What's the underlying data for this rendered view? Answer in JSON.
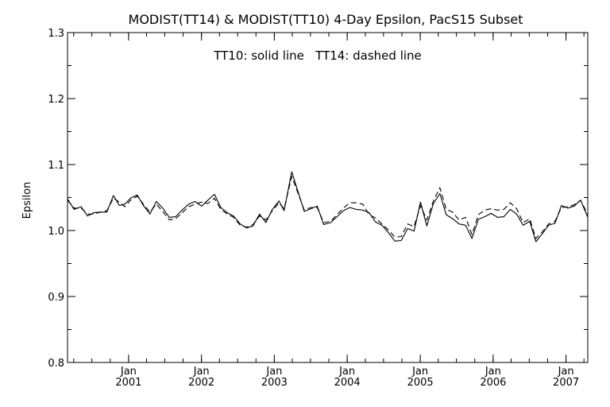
{
  "chart_data": {
    "type": "line",
    "title": "MODIST(TT14) & MODIST(TT10) 4-Day Epsilon, PacS15 Subset",
    "annotation": "TT10: solid line   TT14: dashed line",
    "xlabel": "",
    "ylabel": "Epsilon",
    "xlim": [
      "2000-03-01",
      "2007-04-20"
    ],
    "ylim": [
      0.8,
      1.3
    ],
    "yticks": [
      "0.8",
      "0.9",
      "1.0",
      "1.1",
      "1.2",
      "1.3"
    ],
    "xticks": [
      {
        "month": "Jan",
        "year": "2001",
        "date": "2001-01-01"
      },
      {
        "month": "Jan",
        "year": "2002",
        "date": "2002-01-01"
      },
      {
        "month": "Jan",
        "year": "2003",
        "date": "2003-01-01"
      },
      {
        "month": "Jan",
        "year": "2004",
        "date": "2004-01-01"
      },
      {
        "month": "Jan",
        "year": "2005",
        "date": "2005-01-01"
      },
      {
        "month": "Jan",
        "year": "2006",
        "date": "2006-01-01"
      },
      {
        "month": "Jan",
        "year": "2007",
        "date": "2007-01-01"
      }
    ],
    "grid": false,
    "legend": "none",
    "series": [
      {
        "style": "solid",
        "x": [
          "2000-03-01",
          "2000-04-03",
          "2000-05-08",
          "2000-06-09",
          "2000-07-11",
          "2000-08-13",
          "2000-09-14",
          "2000-10-17",
          "2000-11-16",
          "2000-12-13",
          "2001-01-11",
          "2001-02-13",
          "2001-03-16",
          "2001-04-18",
          "2001-05-20",
          "2001-06-21",
          "2001-07-24",
          "2001-08-25",
          "2001-09-26",
          "2001-10-29",
          "2001-11-30",
          "2002-01-01",
          "2002-02-02",
          "2002-03-07",
          "2002-04-08",
          "2002-05-10",
          "2002-06-11",
          "2002-07-14",
          "2002-08-15",
          "2002-09-16",
          "2002-10-19",
          "2002-11-20",
          "2002-12-22",
          "2003-01-24",
          "2003-02-19",
          "2003-03-29",
          "2003-05-31",
          "2003-07-03",
          "2003-08-04",
          "2003-09-05",
          "2003-10-10",
          "2003-11-11",
          "2003-12-13",
          "2004-01-14",
          "2004-02-15",
          "2004-03-19",
          "2004-04-20",
          "2004-05-22",
          "2004-06-23",
          "2004-07-25",
          "2004-08-27",
          "2004-09-28",
          "2004-10-30",
          "2004-12-01",
          "2005-01-02",
          "2005-02-03",
          "2005-03-08",
          "2005-04-09",
          "2005-05-11",
          "2005-06-12",
          "2005-07-14",
          "2005-08-16",
          "2005-09-17",
          "2005-10-19",
          "2005-11-20",
          "2005-12-22",
          "2006-01-23",
          "2006-02-24",
          "2006-03-28",
          "2006-04-29",
          "2006-05-31",
          "2006-07-03",
          "2006-08-03",
          "2006-09-04",
          "2006-10-06",
          "2006-11-07",
          "2006-12-09",
          "2007-01-10",
          "2007-02-11",
          "2007-03-15",
          "2007-04-20"
        ],
        "y": [
          1.048,
          1.032,
          1.036,
          1.022,
          1.027,
          1.028,
          1.028,
          1.053,
          1.038,
          1.04,
          1.049,
          1.054,
          1.038,
          1.025,
          1.044,
          1.034,
          1.02,
          1.021,
          1.031,
          1.04,
          1.044,
          1.037,
          1.046,
          1.055,
          1.035,
          1.027,
          1.022,
          1.01,
          1.004,
          1.007,
          1.025,
          1.012,
          1.032,
          1.045,
          1.03,
          1.089,
          1.029,
          1.033,
          1.037,
          1.009,
          1.012,
          1.021,
          1.03,
          1.035,
          1.032,
          1.031,
          1.027,
          1.013,
          1.008,
          0.997,
          0.984,
          0.985,
          1.003,
          0.999,
          1.043,
          1.007,
          1.041,
          1.056,
          1.024,
          1.018,
          1.01,
          1.008,
          0.988,
          1.017,
          1.021,
          1.026,
          1.02,
          1.021,
          1.032,
          1.025,
          1.008,
          1.014,
          0.983,
          0.995,
          1.008,
          1.011,
          1.038,
          1.034,
          1.037,
          1.046,
          1.02
        ]
      },
      {
        "style": "dashed",
        "x": [
          "2000-03-01",
          "2000-04-03",
          "2000-05-08",
          "2000-06-09",
          "2000-07-11",
          "2000-08-13",
          "2000-09-14",
          "2000-10-17",
          "2000-11-16",
          "2000-12-13",
          "2001-01-11",
          "2001-02-13",
          "2001-03-16",
          "2001-04-18",
          "2001-05-20",
          "2001-06-21",
          "2001-07-24",
          "2001-08-25",
          "2001-09-26",
          "2001-10-29",
          "2001-11-30",
          "2002-01-01",
          "2002-02-02",
          "2002-03-07",
          "2002-04-08",
          "2002-05-10",
          "2002-06-11",
          "2002-07-14",
          "2002-08-15",
          "2002-09-16",
          "2002-10-19",
          "2002-11-20",
          "2002-12-22",
          "2003-01-24",
          "2003-02-19",
          "2003-03-29",
          "2003-05-31",
          "2003-07-03",
          "2003-08-04",
          "2003-09-05",
          "2003-10-10",
          "2003-11-11",
          "2003-12-13",
          "2004-01-14",
          "2004-02-15",
          "2004-03-19",
          "2004-04-20",
          "2004-05-22",
          "2004-06-23",
          "2004-07-25",
          "2004-08-27",
          "2004-09-28",
          "2004-10-30",
          "2004-12-01",
          "2005-01-02",
          "2005-02-03",
          "2005-03-08",
          "2005-04-09",
          "2005-05-11",
          "2005-06-12",
          "2005-07-14",
          "2005-08-16",
          "2005-09-17",
          "2005-10-19",
          "2005-11-20",
          "2005-12-22",
          "2006-01-23",
          "2006-02-24",
          "2006-03-28",
          "2006-04-29",
          "2006-05-31",
          "2006-07-03",
          "2006-08-03",
          "2006-09-04",
          "2006-10-06",
          "2006-11-07",
          "2006-12-09",
          "2007-01-10",
          "2007-02-11",
          "2007-03-15",
          "2007-04-20"
        ],
        "y": [
          1.046,
          1.034,
          1.034,
          1.025,
          1.025,
          1.028,
          1.03,
          1.049,
          1.043,
          1.036,
          1.046,
          1.052,
          1.04,
          1.028,
          1.04,
          1.029,
          1.016,
          1.018,
          1.027,
          1.036,
          1.04,
          1.043,
          1.041,
          1.049,
          1.032,
          1.025,
          1.02,
          1.008,
          1.005,
          1.009,
          1.022,
          1.016,
          1.03,
          1.042,
          1.033,
          1.082,
          1.031,
          1.035,
          1.035,
          1.012,
          1.014,
          1.024,
          1.034,
          1.042,
          1.042,
          1.04,
          1.024,
          1.019,
          1.01,
          1.001,
          0.99,
          0.991,
          1.01,
          1.006,
          1.038,
          1.016,
          1.045,
          1.065,
          1.032,
          1.028,
          1.016,
          1.02,
          0.994,
          1.024,
          1.031,
          1.033,
          1.031,
          1.032,
          1.042,
          1.033,
          1.012,
          1.018,
          0.988,
          0.998,
          1.01,
          1.014,
          1.035,
          1.036,
          1.039,
          1.046,
          1.024
        ]
      }
    ]
  }
}
